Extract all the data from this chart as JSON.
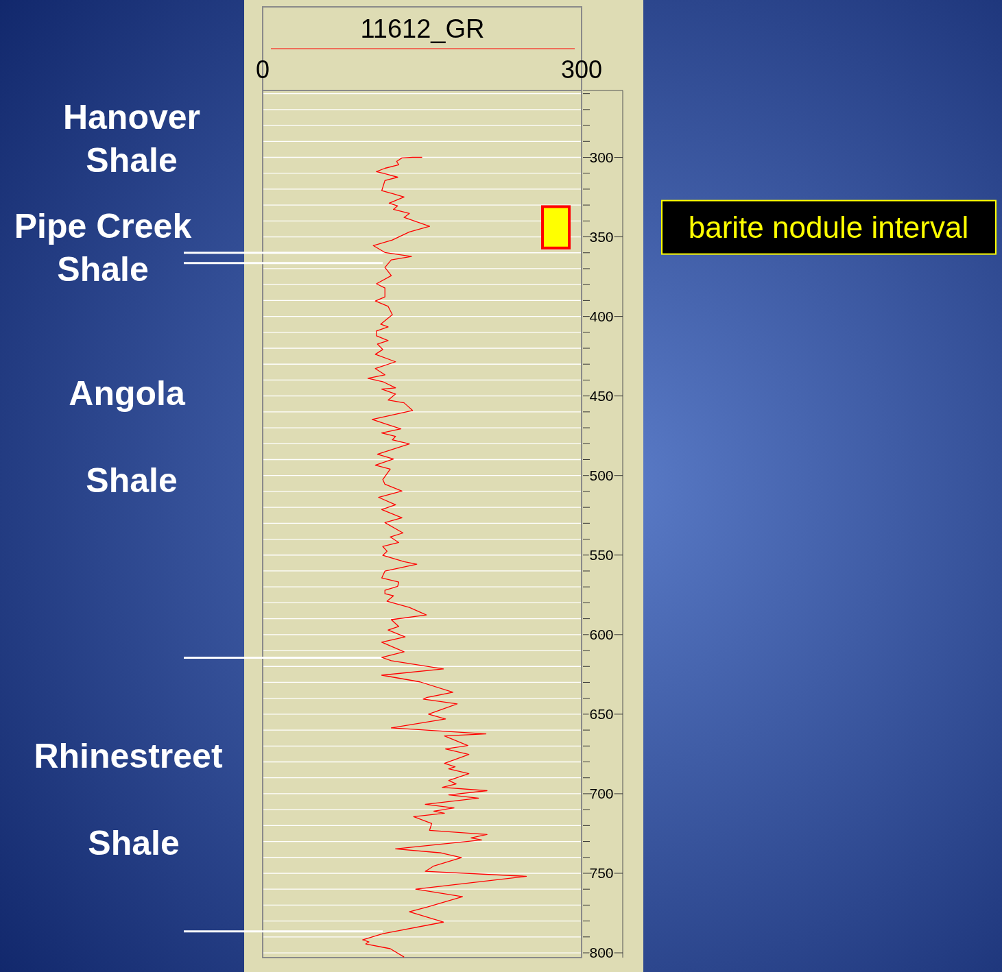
{
  "chart_data": {
    "type": "line",
    "xlabel": "11612_GR",
    "xlim": [
      0,
      300
    ],
    "xticks": [
      0,
      300
    ],
    "ylim": [
      803,
      258
    ],
    "yticks": [
      {
        "value": 260,
        "label": null
      },
      {
        "value": 270,
        "label": null
      },
      {
        "value": 280,
        "label": null
      },
      {
        "value": 290,
        "label": null
      },
      300,
      {
        "value": 310,
        "label": null
      },
      {
        "value": 320,
        "label": null
      },
      {
        "value": 330,
        "label": null
      },
      {
        "value": 340,
        "label": null
      },
      350,
      {
        "value": 360,
        "label": null
      },
      {
        "value": 370,
        "label": null
      },
      {
        "value": 380,
        "label": null
      },
      {
        "value": 390,
        "label": null
      },
      400,
      {
        "value": 410,
        "label": null
      },
      {
        "value": 420,
        "label": null
      },
      {
        "value": 430,
        "label": null
      },
      {
        "value": 440,
        "label": null
      },
      450,
      {
        "value": 460,
        "label": null
      },
      {
        "value": 470,
        "label": null
      },
      {
        "value": 480,
        "label": null
      },
      {
        "value": 490,
        "label": null
      },
      500,
      {
        "value": 510,
        "label": null
      },
      {
        "value": 520,
        "label": null
      },
      {
        "value": 530,
        "label": null
      },
      {
        "value": 540,
        "label": null
      },
      550,
      {
        "value": 560,
        "label": null
      },
      {
        "value": 570,
        "label": null
      },
      {
        "value": 580,
        "label": null
      },
      {
        "value": 590,
        "label": null
      },
      600,
      {
        "value": 610,
        "label": null
      },
      {
        "value": 620,
        "label": null
      },
      {
        "value": 630,
        "label": null
      },
      {
        "value": 640,
        "label": null
      },
      650,
      {
        "value": 660,
        "label": null
      },
      {
        "value": 670,
        "label": null
      },
      {
        "value": 680,
        "label": null
      },
      {
        "value": 690,
        "label": null
      },
      700,
      {
        "value": 710,
        "label": null
      },
      {
        "value": 720,
        "label": null
      },
      {
        "value": 730,
        "label": null
      },
      {
        "value": 740,
        "label": null
      },
      750,
      {
        "value": 760,
        "label": null
      },
      {
        "value": 770,
        "label": null
      },
      {
        "value": 780,
        "label": null
      },
      {
        "value": 790,
        "label": null
      },
      800
    ],
    "grid": "y",
    "line_style": "solid",
    "series": [
      {
        "color": "#ff0000",
        "x": [
          150,
          141,
          131,
          126,
          128,
          115,
          107,
          115,
          127,
          115,
          112,
          122,
          133,
          119,
          127,
          123,
          138,
          133,
          157,
          138,
          122,
          104,
          115,
          140,
          121,
          115,
          121,
          107,
          115,
          115,
          106,
          118,
          122,
          111,
          118,
          107,
          107,
          118,
          108,
          113,
          106,
          125,
          106,
          115,
          99,
          113,
          125,
          112,
          125,
          118,
          133,
          141,
          103,
          118,
          130,
          112,
          125,
          122,
          138,
          108,
          123,
          106,
          120,
          113,
          115,
          131,
          109,
          125,
          112,
          131,
          115,
          132,
          120,
          128,
          113,
          117,
          113,
          133,
          145,
          115,
          112,
          128,
          127,
          115,
          115,
          123,
          117,
          138,
          154,
          121,
          128,
          118,
          134,
          112,
          133,
          112,
          121,
          170,
          112,
          148,
          179,
          154,
          151,
          183,
          156,
          172,
          121,
          210,
          171,
          193,
          172,
          194,
          171,
          181,
          175,
          194,
          175,
          182,
          169,
          211,
          175,
          203,
          153,
          180,
          161,
          171,
          142,
          159,
          157,
          211,
          196,
          206,
          125,
          168,
          187,
          161,
          153,
          248,
          144,
          188,
          155,
          138,
          170,
          113,
          94,
          100,
          97,
          120,
          133
        ],
        "values": [
          300,
          300,
          300.4,
          302.6,
          304.7,
          306.9,
          309,
          310.3,
          312.5,
          314.6,
          321,
          322.8,
          324.9,
          328.8,
          330.5,
          332.7,
          335.3,
          337.8,
          343.4,
          346.9,
          352,
          355.5,
          359.8,
          362.3,
          364.5,
          369.2,
          374.4,
          379.5,
          382.1,
          387.7,
          390.3,
          393.7,
          398.9,
          404.9,
          406.6,
          409.2,
          412.2,
          415.2,
          417.4,
          420.8,
          423.8,
          428.5,
          432.8,
          436.7,
          438.9,
          441,
          444.9,
          445.7,
          448.8,
          452.6,
          454.3,
          459.1,
          464.7,
          468.1,
          470.7,
          473.3,
          475.4,
          477.6,
          480.1,
          486.6,
          489.6,
          493.5,
          496,
          502.5,
          505.5,
          509.8,
          513.7,
          518.4,
          521.4,
          526.6,
          529.6,
          536.1,
          538.6,
          542.1,
          544.6,
          547.6,
          550.2,
          554.1,
          555.8,
          560.1,
          564.4,
          567,
          569.6,
          572.1,
          574.3,
          575.6,
          579,
          582.9,
          587.6,
          590.6,
          594.9,
          597.1,
          601.4,
          604.8,
          610.8,
          614.3,
          616.4,
          621.6,
          625.5,
          629.7,
          636.2,
          639.6,
          640.5,
          643.5,
          650,
          653,
          658.6,
          662.4,
          663.7,
          669.7,
          671.9,
          675.3,
          680.9,
          683.1,
          684.4,
          687.4,
          691.7,
          693.8,
          696,
          698.1,
          700.7,
          702.8,
          706.7,
          708.9,
          711,
          712.3,
          714.4,
          718.7,
          723,
          725.6,
          727.8,
          729.1,
          734.7,
          737.2,
          740.2,
          745.4,
          748.8,
          751.9,
          760,
          764.7,
          771.2,
          774.2,
          780.7,
          788,
          791.8,
          793.1,
          794.4,
          797.4,
          802.6
        ]
      }
    ],
    "ref_lines": [
      {
        "axis": "y",
        "value": 360,
        "color": "#ffffff"
      },
      {
        "axis": "y",
        "value": 366.5,
        "color": "#ffffff"
      },
      {
        "axis": "y",
        "value": 614.5,
        "color": "#ffffff"
      },
      {
        "axis": "y",
        "value": 786.5,
        "color": "#ffffff"
      }
    ],
    "bands": [
      {
        "axis": "y",
        "from": 331,
        "to": 357,
        "label": "barite nodule interval",
        "color": "#ffff00"
      }
    ],
    "annotations": [
      "Hanover",
      "Shale",
      "Pipe Creek",
      "Shale",
      "Angola",
      "Shale",
      "Rhinestreet",
      "Shale"
    ]
  }
}
